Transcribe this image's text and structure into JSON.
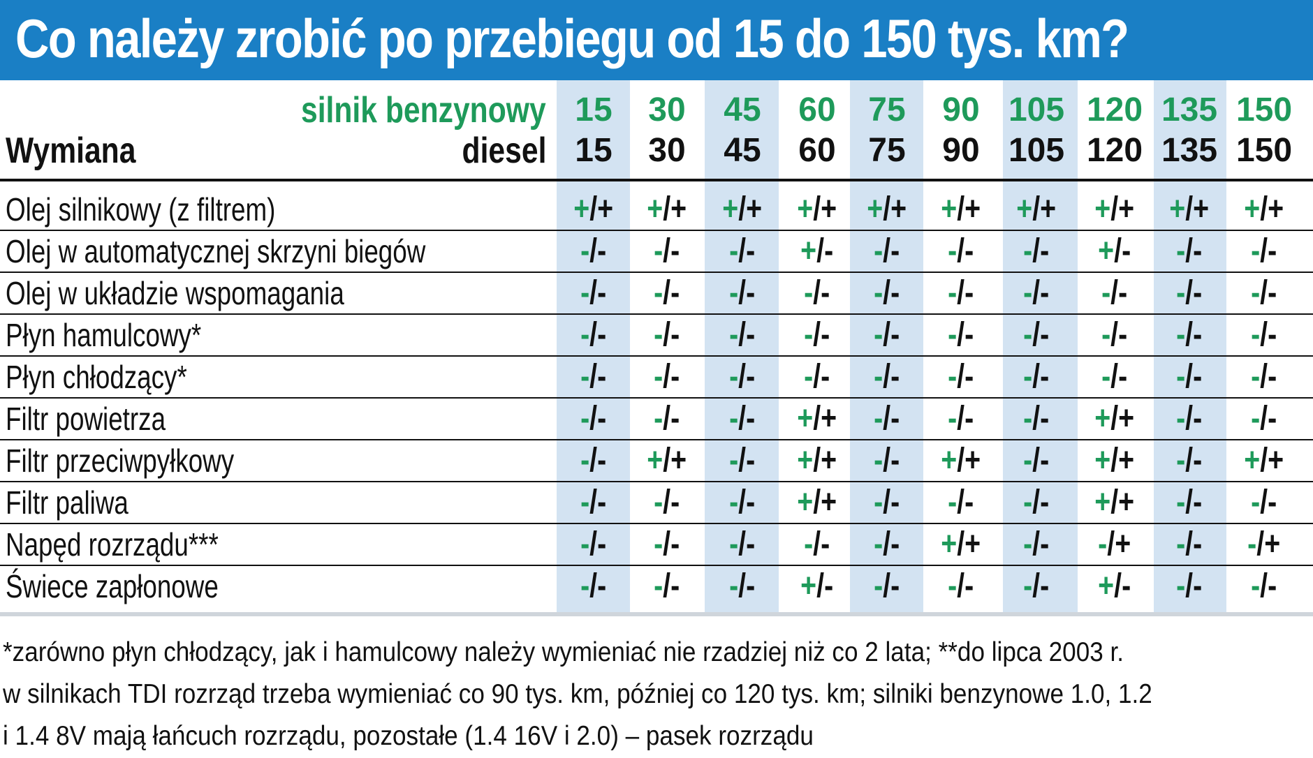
{
  "title": "Co należy zrobić po przebiegu od 15 do 150 tys. km?",
  "header": {
    "petrol_label": "silnik benzynowy",
    "diesel_label": "diesel",
    "replace_label": "Wymiana",
    "petrol_km": [
      "15",
      "30",
      "45",
      "60",
      "75",
      "90",
      "105",
      "120",
      "135",
      "150"
    ],
    "diesel_km": [
      "15",
      "30",
      "45",
      "60",
      "75",
      "90",
      "105",
      "120",
      "135",
      "150"
    ]
  },
  "rows": [
    {
      "label": "Olej silnikowy (z filtrem)",
      "cells": [
        "+/+",
        "+/+",
        "+/+",
        "+/+",
        "+/+",
        "+/+",
        "+/+",
        "+/+",
        "+/+",
        "+/+"
      ]
    },
    {
      "label": "Olej w automatycznej skrzyni biegów",
      "cells": [
        "-/-",
        "-/-",
        "-/-",
        "+/-",
        "-/-",
        "-/-",
        "-/-",
        "+/-",
        "-/-",
        "-/-"
      ]
    },
    {
      "label": "Olej w układzie wspomagania",
      "cells": [
        "-/-",
        "-/-",
        "-/-",
        "-/-",
        "-/-",
        "-/-",
        "-/-",
        "-/-",
        "-/-",
        "-/-"
      ]
    },
    {
      "label": "Płyn hamulcowy*",
      "cells": [
        "-/-",
        "-/-",
        "-/-",
        "-/-",
        "-/-",
        "-/-",
        "-/-",
        "-/-",
        "-/-",
        "-/-"
      ]
    },
    {
      "label": "Płyn chłodzący*",
      "cells": [
        "-/-",
        "-/-",
        "-/-",
        "-/-",
        "-/-",
        "-/-",
        "-/-",
        "-/-",
        "-/-",
        "-/-"
      ]
    },
    {
      "label": "Filtr powietrza",
      "cells": [
        "-/-",
        "-/-",
        "-/-",
        "+/+",
        "-/-",
        "-/-",
        "-/-",
        "+/+",
        "-/-",
        "-/-"
      ]
    },
    {
      "label": "Filtr przeciwpyłkowy",
      "cells": [
        "-/-",
        "+/+",
        "-/-",
        "+/+",
        "-/-",
        "+/+",
        "-/-",
        "+/+",
        "-/-",
        "+/+"
      ]
    },
    {
      "label": "Filtr paliwa",
      "cells": [
        "-/-",
        "-/-",
        "-/-",
        "+/+",
        "-/-",
        "-/-",
        "-/-",
        "+/+",
        "-/-",
        "-/-"
      ]
    },
    {
      "label": "Napęd rozrządu***",
      "cells": [
        "-/-",
        "-/-",
        "-/-",
        "-/-",
        "-/-",
        "+/+",
        "-/-",
        "-/+",
        "-/-",
        "-/+"
      ]
    },
    {
      "label": "Świece zapłonowe",
      "cells": [
        "-/-",
        "-/-",
        "-/-",
        "+/-",
        "-/-",
        "-/-",
        "-/-",
        "+/-",
        "-/-",
        "-/-"
      ]
    }
  ],
  "footnote": {
    "line1": "*zarówno płyn chłodzący, jak i hamulcowy należy wymieniać nie rzadziej niż co 2 lata; **do lipca 2003 r.",
    "line2": "w silnikach TDI rozrząd trzeba wymieniać co 90 tys. km, później co 120 tys. km; silniki benzynowe 1.0, 1.2",
    "line3": "i 1.4 8V mają łańcuch rozrządu, pozostałe (1.4 16V i 2.0) – pasek rozrządu"
  },
  "colors": {
    "title_bg": "#1a7fc5",
    "shade": "#d3e3f2",
    "petrol_green": "#1e9a5a",
    "text": "#111111"
  }
}
